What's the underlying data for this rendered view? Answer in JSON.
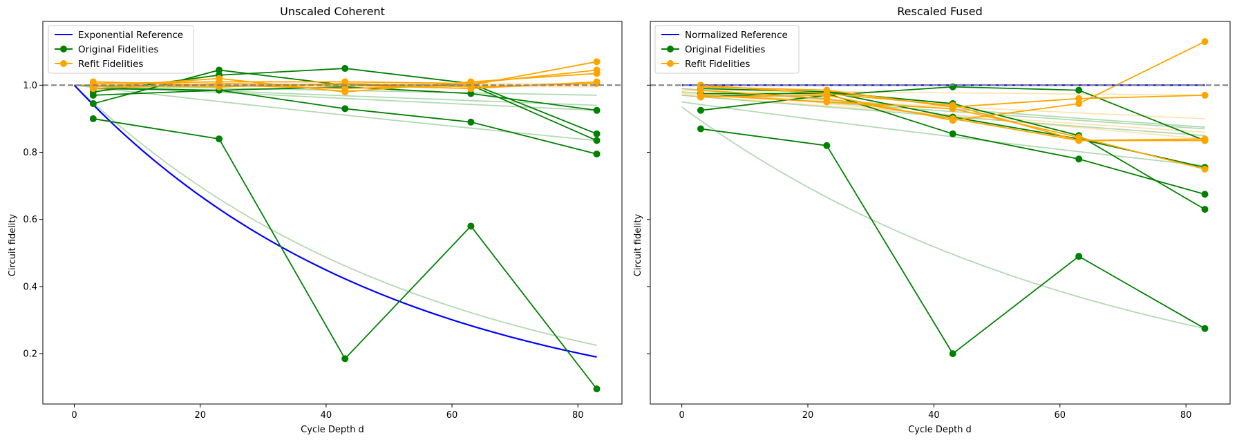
{
  "colors": {
    "reference": "#0000ff",
    "original": "#008000",
    "refit": "#ffa500",
    "baseline": "#808080"
  },
  "chart_data": [
    {
      "type": "line",
      "title": "Unscaled Coherent",
      "xlabel": "Cycle Depth d",
      "ylabel": "Circuit fidelity",
      "xlim": [
        -5,
        87
      ],
      "ylim": [
        0.05,
        1.19
      ],
      "xticks": [
        0,
        20,
        40,
        60,
        80
      ],
      "yticks": [
        0.2,
        0.4,
        0.6,
        0.8,
        1.0
      ],
      "baseline": 1.0,
      "legend": {
        "position": "top-left",
        "entries": [
          "Exponential Reference",
          "Original Fidelities",
          "Refit Fidelities"
        ]
      },
      "reference": {
        "name": "Exponential Reference",
        "x": [
          0,
          83
        ],
        "y0": 1.0,
        "y_end": 0.19
      },
      "original_series": [
        {
          "x": [
            3,
            23,
            43,
            63,
            83
          ],
          "y": [
            0.9,
            0.84,
            0.185,
            0.58,
            0.095
          ]
        },
        {
          "x": [
            3,
            23,
            43,
            63,
            83
          ],
          "y": [
            0.945,
            1.045,
            1.0,
            1.0,
            0.835
          ]
        },
        {
          "x": [
            3,
            23,
            43,
            63,
            83
          ],
          "y": [
            0.98,
            1.03,
            1.05,
            1.005,
            0.855
          ]
        },
        {
          "x": [
            3,
            23,
            43,
            63,
            83
          ],
          "y": [
            0.99,
            0.985,
            0.93,
            0.89,
            0.795
          ]
        },
        {
          "x": [
            3,
            23,
            43,
            63,
            83
          ],
          "y": [
            0.97,
            0.985,
            0.995,
            0.975,
            0.925
          ]
        }
      ],
      "original_fits": [
        {
          "x0": 0,
          "y0": 1.0,
          "x1": 83,
          "y1": 0.225
        },
        {
          "x0": 0,
          "y0": 1.0,
          "x1": 83,
          "y1": 0.835
        },
        {
          "x0": 0,
          "y0": 1.0,
          "x1": 83,
          "y1": 0.925
        },
        {
          "x0": 0,
          "y0": 1.0,
          "x1": 83,
          "y1": 0.94
        },
        {
          "x0": 0,
          "y0": 1.0,
          "x1": 83,
          "y1": 0.97
        }
      ],
      "refit_series": [
        {
          "x": [
            3,
            23,
            43,
            63,
            83
          ],
          "y": [
            1.01,
            1.0,
            0.99,
            1.0,
            1.07
          ]
        },
        {
          "x": [
            3,
            23,
            43,
            63,
            83
          ],
          "y": [
            1.005,
            1.01,
            1.01,
            1.005,
            1.045
          ]
        },
        {
          "x": [
            3,
            23,
            43,
            63,
            83
          ],
          "y": [
            0.995,
            1.02,
            0.98,
            1.01,
            1.035
          ]
        },
        {
          "x": [
            3,
            23,
            43,
            63,
            83
          ],
          "y": [
            1.0,
            0.995,
            1.005,
            0.995,
            1.005
          ]
        },
        {
          "x": [
            3,
            23,
            43,
            63,
            83
          ],
          "y": [
            0.99,
            1.005,
            1.0,
            0.99,
            1.01
          ]
        }
      ],
      "refit_fits": [
        {
          "x0": 0,
          "y0": 1.0,
          "x1": 83,
          "y1": 1.0
        },
        {
          "x0": 0,
          "y0": 1.0,
          "x1": 83,
          "y1": 1.005
        },
        {
          "x0": 0,
          "y0": 1.0,
          "x1": 83,
          "y1": 0.995
        }
      ]
    },
    {
      "type": "line",
      "title": "Rescaled Fused",
      "xlabel": "Cycle Depth d",
      "ylabel": "Circuit fidelity",
      "xlim": [
        -5,
        87
      ],
      "ylim": [
        0.05,
        1.19
      ],
      "xticks": [
        0,
        20,
        40,
        60,
        80
      ],
      "yticks": [
        0.2,
        0.4,
        0.6,
        0.8,
        1.0
      ],
      "baseline": 1.0,
      "legend": {
        "position": "top-left",
        "entries": [
          "Normalized Reference",
          "Original Fidelities",
          "Refit Fidelities"
        ]
      },
      "reference": {
        "name": "Normalized Reference",
        "x": [
          0,
          83
        ],
        "y0": 1.0,
        "y_end": 1.0
      },
      "original_series": [
        {
          "x": [
            3,
            23,
            43,
            63,
            83
          ],
          "y": [
            0.87,
            0.82,
            0.2,
            0.49,
            0.275
          ]
        },
        {
          "x": [
            3,
            23,
            43,
            63,
            83
          ],
          "y": [
            0.925,
            0.97,
            0.995,
            0.985,
            0.835
          ]
        },
        {
          "x": [
            3,
            23,
            43,
            63,
            83
          ],
          "y": [
            0.965,
            0.98,
            0.945,
            0.85,
            0.63
          ]
        },
        {
          "x": [
            3,
            23,
            43,
            63,
            83
          ],
          "y": [
            0.975,
            0.975,
            0.855,
            0.78,
            0.675
          ]
        },
        {
          "x": [
            3,
            23,
            43,
            63,
            83
          ],
          "y": [
            0.99,
            0.98,
            0.905,
            0.84,
            0.755
          ]
        }
      ],
      "original_fits": [
        {
          "x0": 0,
          "y0": 0.935,
          "x1": 83,
          "y1": 0.275
        },
        {
          "x0": 0,
          "y0": 0.95,
          "x1": 83,
          "y1": 0.76
        },
        {
          "x0": 0,
          "y0": 0.97,
          "x1": 83,
          "y1": 0.85
        },
        {
          "x0": 0,
          "y0": 0.98,
          "x1": 83,
          "y1": 0.87
        },
        {
          "x0": 0,
          "y0": 0.99,
          "x1": 83,
          "y1": 0.875
        }
      ],
      "refit_series": [
        {
          "x": [
            3,
            23,
            43,
            63,
            83
          ],
          "y": [
            0.965,
            0.97,
            0.895,
            0.945,
            1.13
          ]
        },
        {
          "x": [
            3,
            23,
            43,
            63,
            83
          ],
          "y": [
            0.995,
            0.985,
            0.935,
            0.96,
            0.97
          ]
        },
        {
          "x": [
            3,
            23,
            43,
            63,
            83
          ],
          "y": [
            0.985,
            0.96,
            0.9,
            0.835,
            0.835
          ]
        },
        {
          "x": [
            3,
            23,
            43,
            63,
            83
          ],
          "y": [
            0.97,
            0.95,
            0.93,
            0.845,
            0.75
          ]
        },
        {
          "x": [
            3,
            23,
            43,
            63,
            83
          ],
          "y": [
            1.0,
            0.975,
            0.94,
            0.835,
            0.84
          ]
        }
      ],
      "refit_fits": [
        {
          "x0": 0,
          "y0": 0.985,
          "x1": 83,
          "y1": 0.97
        },
        {
          "x0": 0,
          "y0": 0.975,
          "x1": 83,
          "y1": 0.9
        },
        {
          "x0": 0,
          "y0": 0.97,
          "x1": 83,
          "y1": 0.86
        },
        {
          "x0": 0,
          "y0": 0.99,
          "x1": 83,
          "y1": 0.84
        }
      ]
    }
  ]
}
